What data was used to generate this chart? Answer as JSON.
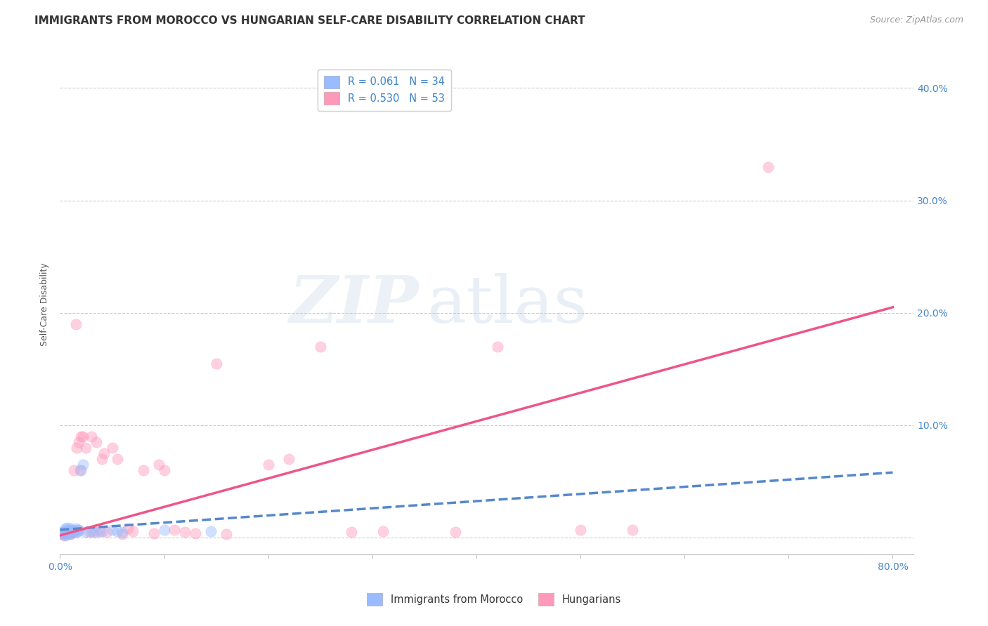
{
  "title": "IMMIGRANTS FROM MOROCCO VS HUNGARIAN SELF-CARE DISABILITY CORRELATION CHART",
  "source": "Source: ZipAtlas.com",
  "ylabel": "Self-Care Disability",
  "xlim": [
    0.0,
    0.82
  ],
  "ylim": [
    -0.015,
    0.43
  ],
  "xtick_positions": [
    0.0,
    0.1,
    0.2,
    0.3,
    0.4,
    0.5,
    0.6,
    0.7,
    0.8
  ],
  "xtick_labels": [
    "0.0%",
    "",
    "",
    "",
    "",
    "",
    "",
    "",
    "80.0%"
  ],
  "yticks": [
    0.0,
    0.1,
    0.2,
    0.3,
    0.4
  ],
  "ytick_labels_right": [
    "",
    "10.0%",
    "20.0%",
    "30.0%",
    "40.0%"
  ],
  "legend_top": [
    {
      "label": "R = 0.061   N = 34",
      "color": "#aaccff"
    },
    {
      "label": "R = 0.530   N = 53",
      "color": "#ffaacc"
    }
  ],
  "legend_bottom": [
    {
      "label": "Immigrants from Morocco",
      "color": "#aaccff"
    },
    {
      "label": "Hungarians",
      "color": "#ffaacc"
    }
  ],
  "watermark_zip": "ZIP",
  "watermark_atlas": "atlas",
  "blue_scatter_x": [
    0.002,
    0.003,
    0.004,
    0.005,
    0.005,
    0.006,
    0.006,
    0.007,
    0.007,
    0.008,
    0.008,
    0.009,
    0.009,
    0.01,
    0.01,
    0.011,
    0.012,
    0.013,
    0.014,
    0.015,
    0.016,
    0.017,
    0.018,
    0.02,
    0.022,
    0.025,
    0.03,
    0.035,
    0.04,
    0.05,
    0.055,
    0.06,
    0.1,
    0.145
  ],
  "blue_scatter_y": [
    0.005,
    0.003,
    0.006,
    0.002,
    0.008,
    0.004,
    0.007,
    0.005,
    0.009,
    0.004,
    0.006,
    0.003,
    0.007,
    0.005,
    0.008,
    0.006,
    0.005,
    0.007,
    0.006,
    0.008,
    0.005,
    0.006,
    0.007,
    0.06,
    0.065,
    0.005,
    0.006,
    0.005,
    0.006,
    0.007,
    0.006,
    0.005,
    0.007,
    0.006
  ],
  "pink_scatter_x": [
    0.002,
    0.003,
    0.004,
    0.005,
    0.006,
    0.007,
    0.008,
    0.009,
    0.01,
    0.011,
    0.012,
    0.013,
    0.014,
    0.015,
    0.016,
    0.017,
    0.018,
    0.019,
    0.02,
    0.022,
    0.025,
    0.028,
    0.03,
    0.032,
    0.035,
    0.038,
    0.04,
    0.042,
    0.045,
    0.05,
    0.055,
    0.06,
    0.065,
    0.07,
    0.08,
    0.09,
    0.095,
    0.1,
    0.11,
    0.12,
    0.13,
    0.15,
    0.16,
    0.2,
    0.22,
    0.25,
    0.28,
    0.31,
    0.38,
    0.42,
    0.5,
    0.55,
    0.68
  ],
  "pink_scatter_y": [
    0.003,
    0.004,
    0.002,
    0.005,
    0.003,
    0.006,
    0.004,
    0.005,
    0.003,
    0.004,
    0.006,
    0.06,
    0.005,
    0.19,
    0.08,
    0.007,
    0.085,
    0.06,
    0.09,
    0.09,
    0.08,
    0.005,
    0.09,
    0.005,
    0.085,
    0.006,
    0.07,
    0.075,
    0.005,
    0.08,
    0.07,
    0.003,
    0.008,
    0.006,
    0.06,
    0.004,
    0.065,
    0.06,
    0.007,
    0.005,
    0.004,
    0.155,
    0.003,
    0.065,
    0.07,
    0.17,
    0.005,
    0.006,
    0.005,
    0.17,
    0.007,
    0.007,
    0.33
  ],
  "blue_line_x": [
    0.0,
    0.8
  ],
  "blue_line_y": [
    0.007,
    0.058
  ],
  "pink_line_x": [
    0.0,
    0.8
  ],
  "pink_line_y": [
    0.002,
    0.205
  ],
  "background_color": "#ffffff",
  "grid_color": "#cccccc",
  "scatter_size": 120,
  "scatter_alpha": 0.45,
  "title_color": "#333333",
  "title_fontsize": 11,
  "axis_label_fontsize": 9,
  "tick_fontsize": 10,
  "tick_color": "#4488cc",
  "scatter_color_blue": "#99BBFF",
  "scatter_color_pink": "#FF99BB",
  "line_color_blue": "#5588CC",
  "line_color_pink": "#EE5588"
}
